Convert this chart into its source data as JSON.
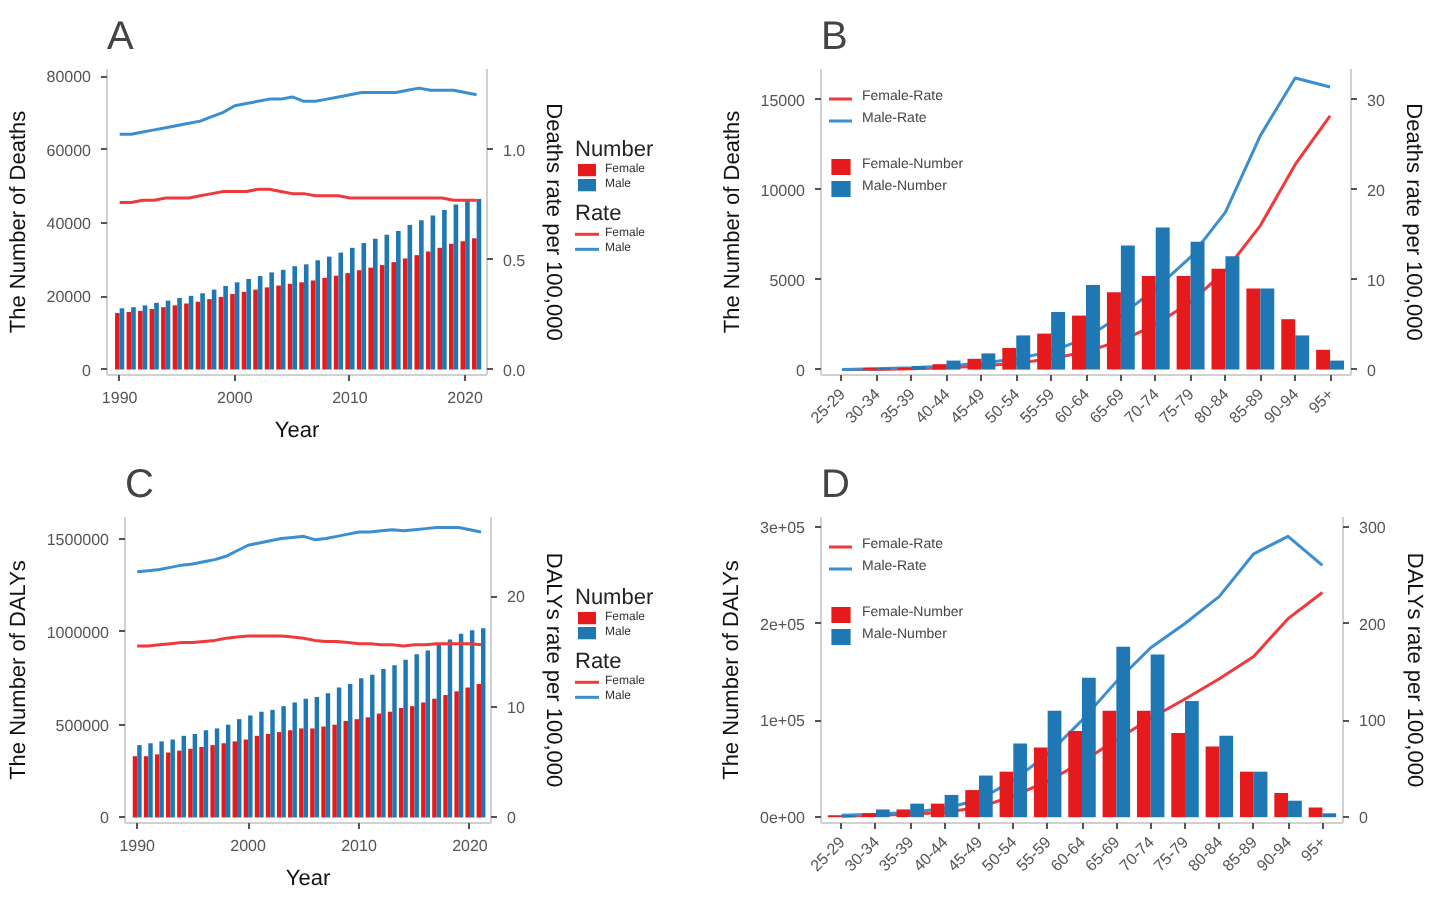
{
  "chart_data": [
    {
      "type": "bar",
      "title": "A",
      "xlabel": "Year",
      "ylabel": "The Number of Deaths",
      "y2label": "Deaths rate per 100,000",
      "legend_title": [
        "Number",
        "Rate"
      ],
      "legend": "right",
      "x": [
        1990,
        1991,
        1992,
        1993,
        1994,
        1995,
        1996,
        1997,
        1998,
        1999,
        2000,
        2001,
        2002,
        2003,
        2004,
        2005,
        2006,
        2007,
        2008,
        2009,
        2010,
        2011,
        2012,
        2013,
        2014,
        2015,
        2016,
        2017,
        2018,
        2019,
        2020,
        2021
      ],
      "xlim": [
        1988.9,
        2021.9
      ],
      "xticks": [
        1990,
        2000,
        2010,
        2020
      ],
      "ylim": [
        -1500,
        82000
      ],
      "yticks": [
        0,
        20000,
        40000,
        60000,
        80000
      ],
      "y2lim": [
        -0.025,
        1.367
      ],
      "y2ticks": [
        {
          "value": 0,
          "label": "0.0"
        },
        {
          "value": 0.5,
          "label": "0.5"
        },
        {
          "value": 1,
          "label": "1.0"
        }
      ],
      "series": [
        {
          "name": "Female",
          "color": "#e41a1c",
          "values": [
            15400,
            15700,
            16000,
            16500,
            17000,
            17500,
            18000,
            18500,
            19200,
            19800,
            20600,
            21200,
            21800,
            22400,
            22900,
            23400,
            23800,
            24300,
            25000,
            25600,
            26300,
            27100,
            27800,
            28500,
            29300,
            30300,
            31200,
            32200,
            33200,
            34300,
            35000,
            35800
          ]
        },
        {
          "name": "Male",
          "color": "#1f78b4",
          "values": [
            16700,
            17000,
            17500,
            18200,
            18800,
            19500,
            20100,
            20800,
            21800,
            22800,
            23800,
            24700,
            25500,
            26500,
            27200,
            28200,
            28700,
            29800,
            30800,
            31900,
            33200,
            34500,
            35700,
            36800,
            37800,
            39400,
            40700,
            42000,
            43500,
            45000,
            46300,
            46500
          ]
        },
        {
          "name": "Female",
          "type": "line",
          "axis": "y2",
          "color": "#f0393b",
          "values": [
            0.76,
            0.76,
            0.77,
            0.77,
            0.78,
            0.78,
            0.78,
            0.79,
            0.8,
            0.81,
            0.81,
            0.81,
            0.82,
            0.82,
            0.81,
            0.8,
            0.8,
            0.79,
            0.79,
            0.79,
            0.78,
            0.78,
            0.78,
            0.78,
            0.78,
            0.78,
            0.78,
            0.78,
            0.78,
            0.77,
            0.77,
            0.77
          ]
        },
        {
          "name": "Male",
          "type": "line",
          "axis": "y2",
          "color": "#3b8fd0",
          "values": [
            1.07,
            1.07,
            1.08,
            1.09,
            1.1,
            1.11,
            1.12,
            1.13,
            1.15,
            1.17,
            1.2,
            1.21,
            1.22,
            1.23,
            1.23,
            1.24,
            1.22,
            1.22,
            1.23,
            1.24,
            1.25,
            1.26,
            1.26,
            1.26,
            1.26,
            1.27,
            1.28,
            1.27,
            1.27,
            1.27,
            1.26,
            1.25
          ]
        }
      ]
    },
    {
      "type": "bar",
      "title": "B",
      "ylabel": "The Number of Deaths",
      "y2label": "Deaths rate per 100,000",
      "legend": "top left",
      "categories": [
        "25-29",
        "30-34",
        "35-39",
        "40-44",
        "45-49",
        "50-54",
        "55-59",
        "60-64",
        "65-69",
        "70-74",
        "75-79",
        "80-84",
        "85-89",
        "90-94",
        "95+"
      ],
      "ylim": [
        -300,
        16700
      ],
      "yticks": [
        0,
        5000,
        10000,
        15000
      ],
      "y2lim": [
        -0.6,
        33.4
      ],
      "y2ticks": [
        0,
        10,
        20,
        30
      ],
      "series": [
        {
          "name": "Female-Rate",
          "type": "line",
          "axis": "y2",
          "color": "#f0393b",
          "values": [
            0,
            0,
            0.1,
            0.2,
            0.4,
            0.7,
            1.2,
            2,
            3.2,
            5,
            7.5,
            11,
            16,
            22.8,
            28.2
          ]
        },
        {
          "name": "Male-Rate",
          "type": "line",
          "axis": "y2",
          "color": "#3b8fd0",
          "values": [
            0,
            0.1,
            0.2,
            0.4,
            0.7,
            1.2,
            2,
            3.5,
            6,
            9,
            12.5,
            17.5,
            26,
            32.4,
            31.4
          ]
        },
        {
          "name": "Female-Number",
          "color": "#e41a1c",
          "values": [
            0,
            100,
            100,
            300,
            600,
            1200,
            2000,
            3000,
            4300,
            5200,
            5200,
            5600,
            4500,
            2800,
            1100
          ]
        },
        {
          "name": "Male-Number",
          "color": "#1f78b4",
          "values": [
            0,
            100,
            200,
            500,
            900,
            1900,
            3200,
            4700,
            6900,
            7900,
            7100,
            6300,
            4500,
            1900,
            500
          ]
        }
      ]
    },
    {
      "type": "bar",
      "title": "C",
      "xlabel": "Year",
      "ylabel": "The Number of DALYs",
      "y2label": "DALYs rate per 100,000",
      "legend_title": [
        "Number",
        "Rate"
      ],
      "legend": "right",
      "x": [
        1990,
        1991,
        1992,
        1993,
        1994,
        1995,
        1996,
        1997,
        1998,
        1999,
        2000,
        2001,
        2002,
        2003,
        2004,
        2005,
        2006,
        2007,
        2008,
        2009,
        2010,
        2011,
        2012,
        2013,
        2014,
        2015,
        2016,
        2017,
        2018,
        2019,
        2020,
        2021
      ],
      "xlim": [
        1988.9,
        2021.9
      ],
      "xticks": [
        1990,
        2000,
        2010,
        2020
      ],
      "ylim": [
        -30000,
        1620000
      ],
      "yticks": [
        0,
        500000,
        1000000,
        1500000
      ],
      "y2lim": [
        -0.503,
        27.15
      ],
      "y2ticks": [
        0,
        10,
        20
      ],
      "series": [
        {
          "name": "Female",
          "color": "#e41a1c",
          "values": [
            330000,
            330000,
            340000,
            350000,
            360000,
            370000,
            380000,
            390000,
            400000,
            410000,
            420000,
            440000,
            450000,
            460000,
            470000,
            480000,
            480000,
            490000,
            500000,
            520000,
            530000,
            540000,
            560000,
            570000,
            590000,
            600000,
            620000,
            640000,
            660000,
            680000,
            700000,
            720000
          ]
        },
        {
          "name": "Male",
          "color": "#1f78b4",
          "values": [
            390000,
            400000,
            410000,
            420000,
            440000,
            450000,
            470000,
            480000,
            500000,
            530000,
            550000,
            570000,
            580000,
            600000,
            620000,
            640000,
            650000,
            670000,
            700000,
            720000,
            750000,
            770000,
            800000,
            820000,
            850000,
            880000,
            900000,
            940000,
            960000,
            990000,
            1010000,
            1020000
          ]
        },
        {
          "name": "Female",
          "type": "line",
          "axis": "y2",
          "color": "#f0393b",
          "values": [
            15.5,
            15.5,
            15.6,
            15.7,
            15.8,
            15.8,
            15.9,
            16.0,
            16.2,
            16.3,
            16.4,
            16.4,
            16.4,
            16.4,
            16.3,
            16.2,
            16.0,
            15.9,
            15.9,
            15.8,
            15.7,
            15.7,
            15.6,
            15.6,
            15.5,
            15.6,
            15.6,
            15.7,
            15.7,
            15.7,
            15.7,
            15.6
          ]
        },
        {
          "name": "Male",
          "type": "line",
          "axis": "y2",
          "color": "#3b8fd0",
          "values": [
            22.2,
            22.3,
            22.4,
            22.6,
            22.8,
            22.9,
            23.1,
            23.3,
            23.6,
            24.1,
            24.6,
            24.8,
            25.0,
            25.2,
            25.3,
            25.4,
            25.1,
            25.2,
            25.4,
            25.6,
            25.8,
            25.8,
            25.9,
            26.0,
            25.9,
            26.0,
            26.1,
            26.2,
            26.2,
            26.2,
            26.0,
            25.8
          ]
        }
      ]
    },
    {
      "type": "bar",
      "title": "D",
      "ylabel": "The Number of DALYs",
      "y2label": "DALYs rate per 100,000",
      "legend": "top left",
      "categories": [
        "25-29",
        "30-34",
        "35-39",
        "40-44",
        "45-49",
        "50-54",
        "55-59",
        "60-64",
        "65-69",
        "70-74",
        "75-79",
        "80-84",
        "85-89",
        "90-94",
        "95+"
      ],
      "ylim": [
        -6000,
        310000
      ],
      "yticks": [
        {
          "value": 0,
          "label": "0e+00"
        },
        {
          "value": 100000,
          "label": "1e+05"
        },
        {
          "value": 200000,
          "label": "2e+05"
        },
        {
          "value": 300000,
          "label": "3e+05"
        }
      ],
      "y2lim": [
        -6,
        310
      ],
      "y2ticks": [
        0,
        100,
        200,
        300
      ],
      "series": [
        {
          "name": "Female-Rate",
          "type": "line",
          "axis": "y2",
          "color": "#f0393b",
          "values": [
            1,
            2,
            3,
            5,
            10,
            22,
            37,
            57,
            80,
            102,
            122,
            143,
            166,
            205,
            232
          ]
        },
        {
          "name": "Male-Rate",
          "type": "line",
          "axis": "y2",
          "color": "#3b8fd0",
          "values": [
            2,
            3,
            5,
            9,
            18,
            38,
            65,
            100,
            140,
            175,
            200,
            228,
            272,
            290,
            260
          ]
        },
        {
          "name": "Female-Number",
          "color": "#e41a1c",
          "values": [
            2000,
            4000,
            8000,
            14000,
            28000,
            47000,
            72000,
            89000,
            110000,
            110000,
            87000,
            73000,
            47000,
            25000,
            10000
          ]
        },
        {
          "name": "Male-Number",
          "color": "#1f78b4",
          "values": [
            2000,
            8000,
            14000,
            23000,
            43000,
            76000,
            110000,
            144000,
            176000,
            168000,
            120000,
            84000,
            47000,
            17000,
            4000
          ]
        }
      ]
    }
  ]
}
